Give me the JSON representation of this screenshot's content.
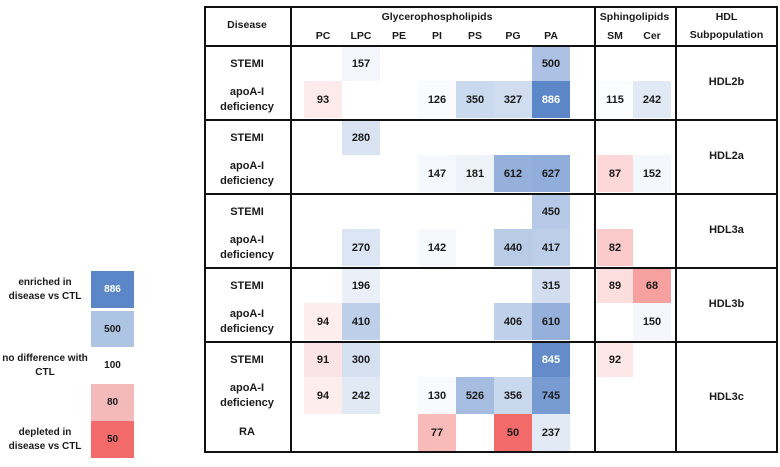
{
  "header": {
    "disease": "Disease",
    "glycero": "Glycerophospholipids",
    "sphingo": "Sphingolipids",
    "hdl_line1": "HDL",
    "hdl_line2": "Subpopulation",
    "columns": [
      "PC",
      "LPC",
      "PE",
      "PI",
      "PS",
      "PG",
      "PA",
      "SM",
      "Cer"
    ]
  },
  "legend": [
    {
      "label": "enriched in disease vs CTL",
      "value": "886",
      "color": "#5b86c8",
      "text_color": "#ffffff"
    },
    {
      "label": "",
      "value": "500",
      "color": "#aec4e3",
      "text_color": "#1a1a1a"
    },
    {
      "label": "no difference with CTL",
      "value": "100",
      "color": "#ffffff",
      "text_color": "#1a1a1a"
    },
    {
      "label": "",
      "value": "80",
      "color": "#f4b9b9",
      "text_color": "#1a1a1a"
    },
    {
      "label": "depleted in disease vs CTL",
      "value": "50",
      "color": "#f26a6a",
      "text_color": "#1a1a1a"
    }
  ],
  "groups": [
    {
      "subpopulation": "HDL2b",
      "rows": [
        {
          "disease": "STEMI",
          "values": [
            null,
            157,
            null,
            null,
            null,
            null,
            500,
            null,
            null
          ]
        },
        {
          "disease": "apoA-I deficiency",
          "values": [
            93,
            null,
            null,
            126,
            350,
            327,
            886,
            115,
            242
          ]
        }
      ]
    },
    {
      "subpopulation": "HDL2a",
      "rows": [
        {
          "disease": "STEMI",
          "values": [
            null,
            280,
            null,
            null,
            null,
            null,
            null,
            null,
            null
          ]
        },
        {
          "disease": "apoA-I deficiency",
          "values": [
            null,
            null,
            null,
            147,
            181,
            612,
            627,
            87,
            152
          ]
        }
      ]
    },
    {
      "subpopulation": "HDL3a",
      "rows": [
        {
          "disease": "STEMI",
          "values": [
            null,
            null,
            null,
            null,
            null,
            null,
            450,
            null,
            null
          ]
        },
        {
          "disease": "apoA-I deficiency",
          "values": [
            null,
            270,
            null,
            142,
            null,
            440,
            417,
            82,
            null
          ]
        }
      ]
    },
    {
      "subpopulation": "HDL3b",
      "rows": [
        {
          "disease": "STEMI",
          "values": [
            null,
            196,
            null,
            null,
            null,
            null,
            315,
            89,
            68
          ]
        },
        {
          "disease": "apoA-I deficiency",
          "values": [
            94,
            410,
            null,
            null,
            null,
            406,
            610,
            null,
            150
          ]
        }
      ]
    },
    {
      "subpopulation": "HDL3c",
      "rows": [
        {
          "disease": "STEMI",
          "values": [
            91,
            300,
            null,
            null,
            null,
            null,
            845,
            92,
            null
          ]
        },
        {
          "disease": "apoA-I deficiency",
          "values": [
            94,
            242,
            null,
            130,
            526,
            356,
            745,
            null,
            null
          ]
        },
        {
          "disease": "RA",
          "values": [
            null,
            null,
            null,
            77,
            null,
            50,
            237,
            null,
            null
          ]
        }
      ]
    }
  ],
  "color_scale": {
    "low": "#f26a6a",
    "mid": "#ffffff",
    "high": "#5b86c8"
  }
}
